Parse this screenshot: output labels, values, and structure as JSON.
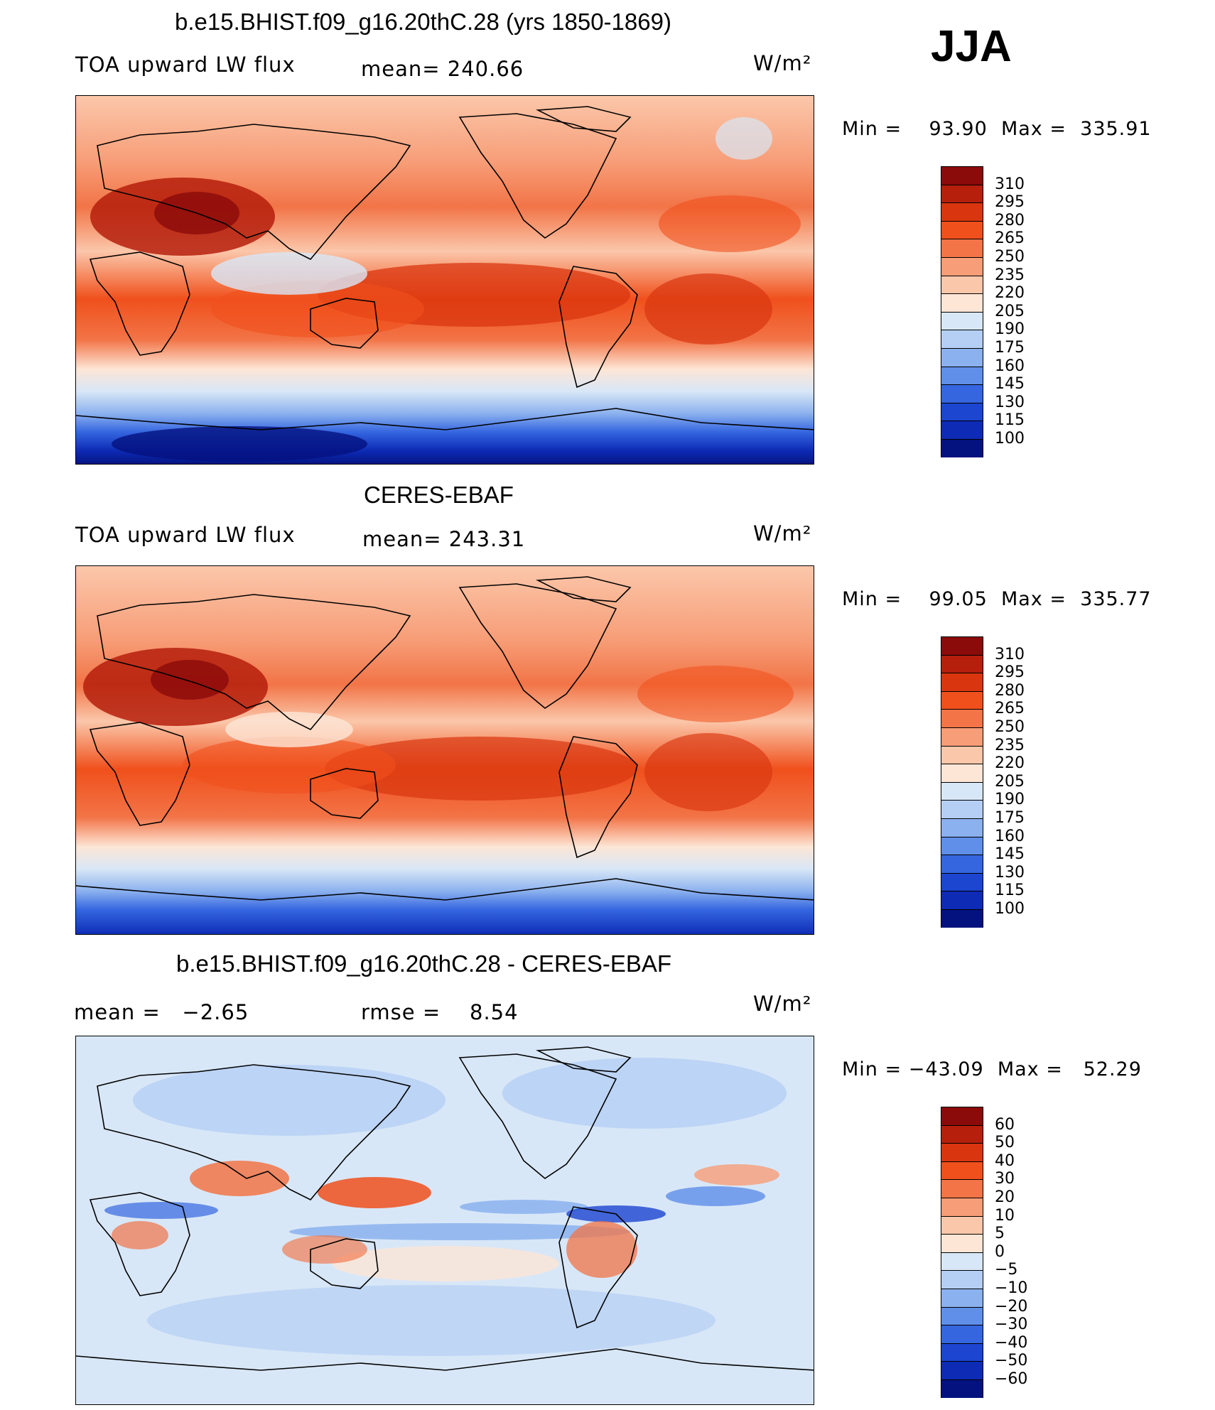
{
  "season": "JJA",
  "units_label": "W/m²",
  "panels": [
    {
      "title": "b.e15.BHIST.f09_g16.20thC.28 (yrs 1850-1869)",
      "left_label": "TOA upward LW flux",
      "mean_label": "mean=",
      "mean_value": "240.66",
      "min_label": "Min =",
      "min_value": "93.90",
      "max_label": "Max =",
      "max_value": "335.91",
      "colorbar": {
        "ticks": [
          "310",
          "295",
          "280",
          "265",
          "250",
          "235",
          "220",
          "205",
          "190",
          "175",
          "160",
          "145",
          "130",
          "115",
          "100"
        ],
        "colors": [
          "#8b0a0a",
          "#b51f0c",
          "#d9360f",
          "#f0501c",
          "#f27447",
          "#f79d77",
          "#fbc7aa",
          "#fde6d6",
          "#d8e7f7",
          "#b5cff4",
          "#8bb1ee",
          "#5f8fe9",
          "#3566e0",
          "#1c45d0",
          "#0d2bb5",
          "#04127f"
        ]
      }
    },
    {
      "title": "CERES-EBAF",
      "left_label": "TOA upward LW flux",
      "mean_label": "mean=",
      "mean_value": "243.31",
      "min_label": "Min =",
      "min_value": "99.05",
      "max_label": "Max =",
      "max_value": "335.77",
      "colorbar": {
        "ticks": [
          "310",
          "295",
          "280",
          "265",
          "250",
          "235",
          "220",
          "205",
          "190",
          "175",
          "160",
          "145",
          "130",
          "115",
          "100"
        ],
        "colors": [
          "#8b0a0a",
          "#b51f0c",
          "#d9360f",
          "#f0501c",
          "#f27447",
          "#f79d77",
          "#fbc7aa",
          "#fde6d6",
          "#d8e7f7",
          "#b5cff4",
          "#8bb1ee",
          "#5f8fe9",
          "#3566e0",
          "#1c45d0",
          "#0d2bb5",
          "#04127f"
        ]
      }
    },
    {
      "title": "b.e15.BHIST.f09_g16.20thC.28 - CERES-EBAF",
      "left_label": "mean =",
      "mean_label": "rmse =",
      "left_value": "−2.65",
      "mean_value": "8.54",
      "min_label": "Min =",
      "min_value": "−43.09",
      "max_label": "Max =",
      "max_value": "52.29",
      "colorbar": {
        "ticks": [
          "60",
          "50",
          "40",
          "30",
          "20",
          "10",
          "5",
          "0",
          "−5",
          "−10",
          "−20",
          "−30",
          "−40",
          "−50",
          "−60"
        ],
        "colors": [
          "#8b0a0a",
          "#b51f0c",
          "#d9360f",
          "#f0501c",
          "#f27447",
          "#f79d77",
          "#fbc7aa",
          "#fde6d6",
          "#d8e7f7",
          "#b5cff4",
          "#8bb1ee",
          "#5f8fe9",
          "#3566e0",
          "#1c45d0",
          "#0d2bb5",
          "#04127f"
        ]
      }
    }
  ]
}
